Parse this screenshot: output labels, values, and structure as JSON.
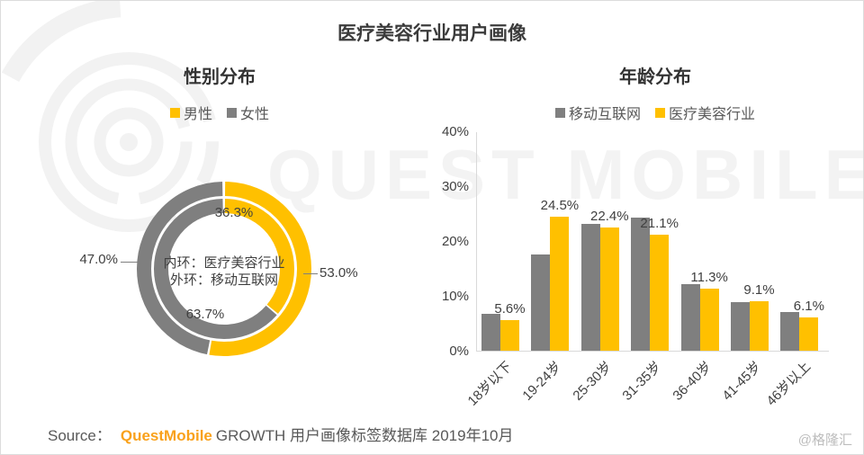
{
  "page": {
    "title": "医疗美容行业用户画像",
    "watermark_text": "QUEST MOBILE",
    "source_prefix": "Source：",
    "source_brand": "QuestMobile",
    "source_rest": "GROWTH 用户画像标签数据库  2019年10月",
    "credit": "@格隆汇"
  },
  "colors": {
    "male_yellow": "#FFC000",
    "female_gray": "#7F7F7F",
    "axis_gray": "#D9D9D9",
    "text_dark": "#404040",
    "brand_orange": "#F9A11B",
    "watermark_gray": "#F2F2F2"
  },
  "chart_data": [
    {
      "id": "gender-distribution",
      "type": "pie",
      "subtype": "double-ring-donut",
      "title": "性别分布",
      "legend": [
        "男性",
        "女性"
      ],
      "center_label_lines": [
        "内环：医疗美容行业",
        "外环：移动互联网"
      ],
      "rings": [
        {
          "name": "医疗美容行业",
          "position": "inner",
          "male_pct": 36.3,
          "female_pct": 63.7
        },
        {
          "name": "移动互联网",
          "position": "outer",
          "male_pct": 53.0,
          "female_pct": 47.0
        }
      ],
      "labels": {
        "inner_male": "36.3%",
        "inner_female": "63.7%",
        "outer_male": "53.0%",
        "outer_female": "47.0%"
      }
    },
    {
      "id": "age-distribution",
      "type": "bar",
      "title": "年龄分布",
      "categories": [
        "18岁以下",
        "19-24岁",
        "25-30岁",
        "31-35岁",
        "36-40岁",
        "41-45岁",
        "46岁以上"
      ],
      "series": [
        {
          "name": "移动互联网",
          "color_key": "female_gray",
          "labeled": false,
          "values": [
            6.7,
            17.6,
            23.1,
            24.3,
            12.1,
            8.9,
            7.1
          ]
        },
        {
          "name": "医疗美容行业",
          "color_key": "male_yellow",
          "labeled": true,
          "values": [
            5.6,
            24.5,
            22.4,
            21.1,
            11.3,
            9.1,
            6.1
          ]
        }
      ],
      "ylabel_ticks": [
        "0%",
        "10%",
        "20%",
        "30%",
        "40%"
      ],
      "ylim": [
        0,
        40
      ],
      "grid": false,
      "legend_position": "top"
    }
  ]
}
